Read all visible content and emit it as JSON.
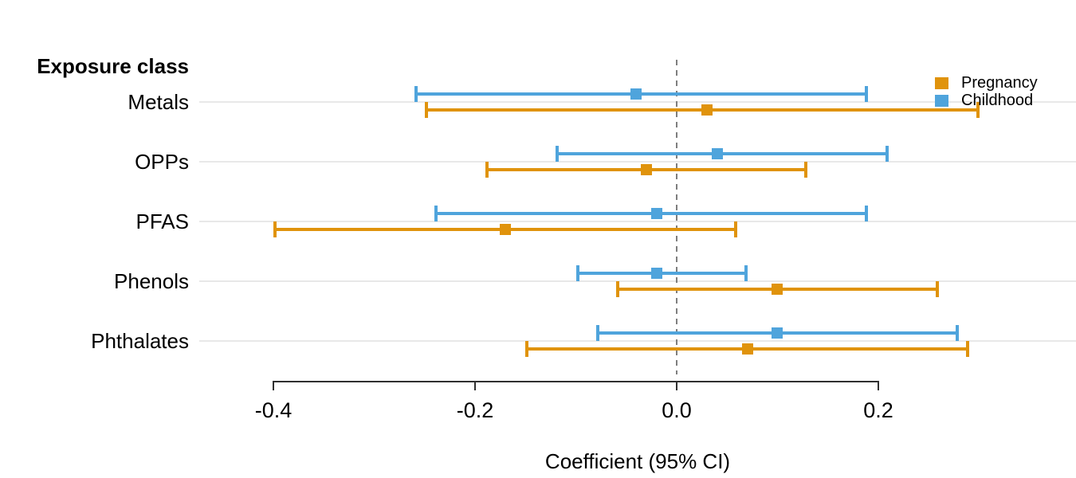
{
  "chart": {
    "y_axis_header": "Exposure class",
    "x_axis_title": "Coefficient (95% CI)",
    "colors": {
      "pregnancy": "#e0930c",
      "childhood": "#4fa4dc",
      "gridline": "#e8e8e8",
      "reference_line": "#7e7e7e",
      "axis": "#303030"
    }
  },
  "chart_data": {
    "type": "forest_ci",
    "title": "",
    "xlabel": "Coefficient (95% CI)",
    "y_header": "Exposure class",
    "categories": [
      "Metals",
      "OPPs",
      "PFAS",
      "Phenols",
      "Phthalates"
    ],
    "series": [
      {
        "name": "Pregnancy",
        "color": "#e0930c",
        "estimates": [
          0.03,
          -0.03,
          -0.17,
          0.1,
          0.07
        ],
        "ci_low": [
          -0.25,
          -0.19,
          -0.4,
          -0.06,
          -0.15
        ],
        "ci_high": [
          0.3,
          0.13,
          0.06,
          0.26,
          0.29
        ]
      },
      {
        "name": "Childhood",
        "color": "#4fa4dc",
        "estimates": [
          -0.04,
          0.04,
          -0.02,
          -0.02,
          0.1
        ],
        "ci_low": [
          -0.26,
          -0.12,
          -0.24,
          -0.1,
          -0.08
        ],
        "ci_high": [
          0.19,
          0.21,
          0.19,
          0.07,
          0.28
        ]
      }
    ],
    "x_ticks": [
      {
        "value": -0.4,
        "label": "-0.4"
      },
      {
        "value": -0.2,
        "label": "-0.2"
      },
      {
        "value": 0.0,
        "label": "0.0"
      },
      {
        "value": 0.2,
        "label": "0.2"
      }
    ],
    "xlim": [
      -0.47,
      0.4
    ],
    "reference_line": 0.0,
    "grid": "horizontal-only",
    "legend_position": "top-right",
    "legend": [
      "Pregnancy",
      "Childhood"
    ]
  }
}
